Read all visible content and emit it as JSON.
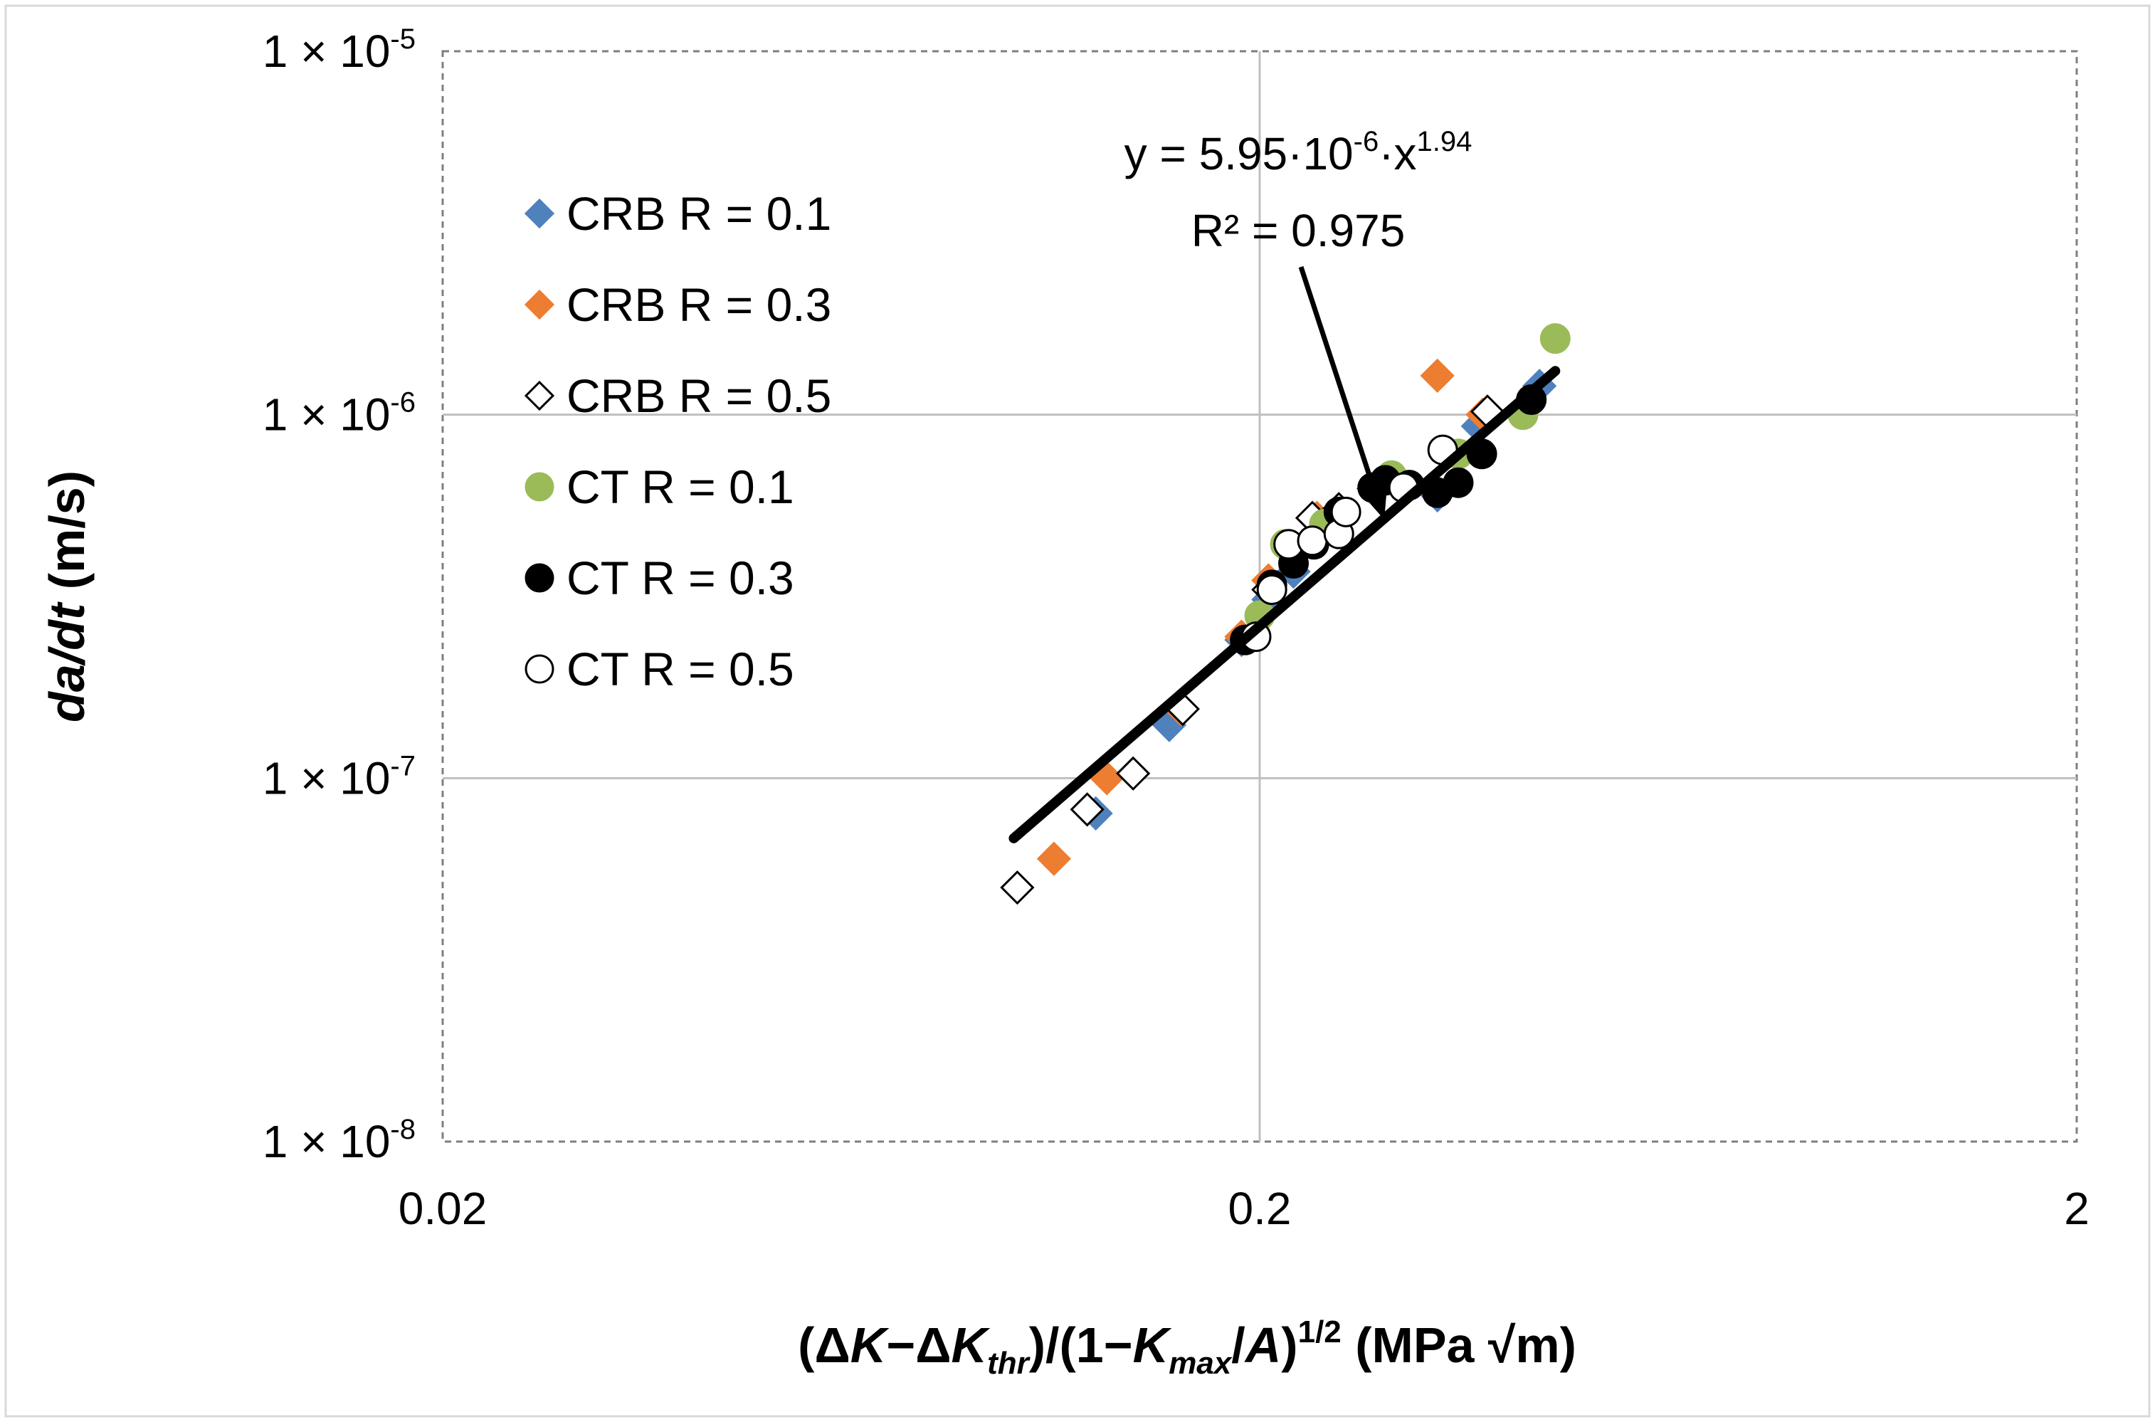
{
  "chart_data": {
    "type": "scatter",
    "scale": {
      "x": "log",
      "y": "log"
    },
    "xlim": [
      0.02,
      2
    ],
    "ylim": [
      1e-08,
      1e-05
    ],
    "grid": true,
    "legend_position": "top-left",
    "x_ticks": [
      {
        "value": 0.02,
        "label": "0.02"
      },
      {
        "value": 0.2,
        "label": "0.2"
      },
      {
        "value": 2,
        "label": "2"
      }
    ],
    "y_ticks": [
      {
        "value": 1e-08,
        "base": "1 × 10",
        "exp": "-8"
      },
      {
        "value": 1e-07,
        "base": "1 × 10",
        "exp": "-7"
      },
      {
        "value": 1e-06,
        "base": "1 × 10",
        "exp": "-6"
      },
      {
        "value": 1e-05,
        "base": "1 × 10",
        "exp": "-5"
      }
    ],
    "xlabel": {
      "open": "(",
      "delta1": "Δ",
      "k1": "K",
      "minus1": "−",
      "delta2": "Δ",
      "k2": "K",
      "sub_thr": "thr",
      "mid": ")/(1−",
      "k3": "K",
      "sub_max": "max",
      "slash": "/",
      "a": "A",
      "close": ")",
      "exp": "1/2",
      "units": " (MPa √m)"
    },
    "ylabel": {
      "italic": "da/dt",
      "units": " (m/s)"
    },
    "fit": {
      "name": "power-law fit",
      "coef": 5.95e-06,
      "exponent": 1.94,
      "x_range": [
        0.1,
        0.46
      ],
      "color": "#000000",
      "equation": {
        "a": "y = 5.95·10",
        "b": "-6",
        "c": "·x",
        "d": "1.94"
      },
      "r2_text": "R² = 0.975"
    },
    "series": [
      {
        "name": "CRB R = 0.1",
        "marker": "diamond",
        "fill": "#4F81BD",
        "stroke": "#4F81BD",
        "x": [
          0.126,
          0.155,
          0.19,
          0.205,
          0.22,
          0.33,
          0.37,
          0.44
        ],
        "y": [
          8e-08,
          1.4e-07,
          2.4e-07,
          3.1e-07,
          3.7e-07,
          6e-07,
          9.3e-07,
          1.2e-06
        ]
      },
      {
        "name": "CRB R = 0.3",
        "marker": "diamond",
        "fill": "#ED7D31",
        "stroke": "#ED7D31",
        "x": [
          0.112,
          0.13,
          0.16,
          0.19,
          0.205,
          0.235,
          0.33,
          0.375
        ],
        "y": [
          6e-08,
          1e-07,
          1.55e-07,
          2.45e-07,
          3.5e-07,
          5.2e-07,
          1.28e-06,
          1e-06
        ]
      },
      {
        "name": "CRB R = 0.5",
        "marker": "diamond",
        "fill": "#ffffff",
        "stroke": "#000000",
        "x": [
          0.101,
          0.123,
          0.14,
          0.161,
          0.205,
          0.232,
          0.25,
          0.38
        ],
        "y": [
          5e-08,
          8.2e-08,
          1.03e-07,
          1.55e-07,
          3.3e-07,
          5.2e-07,
          5.5e-07,
          1.02e-06
        ]
      },
      {
        "name": "CT R = 0.1",
        "marker": "circle",
        "fill": "#9BBB59",
        "stroke": "#9BBB59",
        "x": [
          0.2,
          0.215,
          0.24,
          0.29,
          0.35,
          0.42,
          0.46
        ],
        "y": [
          2.8e-07,
          4.4e-07,
          5e-07,
          6.8e-07,
          7.8e-07,
          1e-06,
          1.62e-06
        ]
      },
      {
        "name": "CT R = 0.3",
        "marker": "circle",
        "fill": "#000000",
        "stroke": "#000000",
        "x": [
          0.192,
          0.207,
          0.22,
          0.233,
          0.25,
          0.275,
          0.285,
          0.305,
          0.33,
          0.35,
          0.374,
          0.43
        ],
        "y": [
          2.4e-07,
          3.4e-07,
          3.9e-07,
          4.4e-07,
          5.4e-07,
          6.3e-07,
          6.6e-07,
          6.4e-07,
          6.1e-07,
          6.5e-07,
          7.8e-07,
          1.1e-06
        ]
      },
      {
        "name": "CT R = 0.5",
        "marker": "circle",
        "fill": "#ffffff",
        "stroke": "#000000",
        "x": [
          0.198,
          0.207,
          0.217,
          0.232,
          0.25,
          0.255,
          0.3,
          0.335
        ],
        "y": [
          2.45e-07,
          3.3e-07,
          4.4e-07,
          4.5e-07,
          4.7e-07,
          5.4e-07,
          6.3e-07,
          8e-07
        ]
      }
    ]
  }
}
